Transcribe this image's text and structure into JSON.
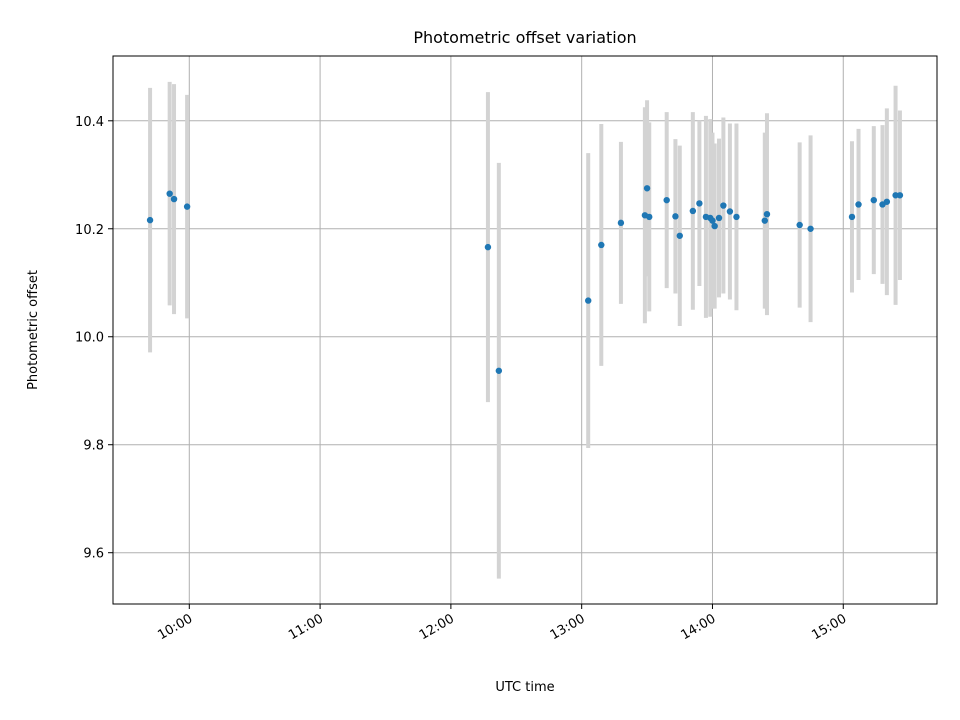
{
  "chart_data": {
    "type": "scatter",
    "title": "Photometric offset variation",
    "xlabel": "UTC time",
    "ylabel": "Photometric offset",
    "xlim": [
      "09:25",
      "15:43"
    ],
    "ylim": [
      9.505,
      10.52
    ],
    "xticks": [
      "10:00",
      "11:00",
      "12:00",
      "13:00",
      "14:00",
      "15:00"
    ],
    "yticks": [
      9.6,
      9.8,
      10.0,
      10.2,
      10.4
    ],
    "grid": true,
    "point_color": "#1f77b4",
    "errorbar_color": "#d3d3d3",
    "points": [
      {
        "x": "09:42",
        "y": 10.216,
        "err": 0.245
      },
      {
        "x": "09:51",
        "y": 10.265,
        "err": 0.207
      },
      {
        "x": "09:53",
        "y": 10.255,
        "err": 0.213
      },
      {
        "x": "09:59",
        "y": 10.241,
        "err": 0.207
      },
      {
        "x": "12:17",
        "y": 10.166,
        "err": 0.287
      },
      {
        "x": "12:22",
        "y": 9.937,
        "err": 0.385
      },
      {
        "x": "13:03",
        "y": 10.067,
        "err": 0.273
      },
      {
        "x": "13:09",
        "y": 10.17,
        "err": 0.224
      },
      {
        "x": "13:18",
        "y": 10.211,
        "err": 0.15
      },
      {
        "x": "13:29",
        "y": 10.225,
        "err": 0.2
      },
      {
        "x": "13:30",
        "y": 10.275,
        "err": 0.163
      },
      {
        "x": "13:31",
        "y": 10.222,
        "err": 0.175
      },
      {
        "x": "13:39",
        "y": 10.253,
        "err": 0.163
      },
      {
        "x": "13:43",
        "y": 10.223,
        "err": 0.143
      },
      {
        "x": "13:45",
        "y": 10.187,
        "err": 0.167
      },
      {
        "x": "13:51",
        "y": 10.233,
        "err": 0.183
      },
      {
        "x": "13:54",
        "y": 10.247,
        "err": 0.153
      },
      {
        "x": "13:57",
        "y": 10.222,
        "err": 0.187
      },
      {
        "x": "13:59",
        "y": 10.22,
        "err": 0.183
      },
      {
        "x": "14:00",
        "y": 10.215,
        "err": 0.163
      },
      {
        "x": "14:01",
        "y": 10.205,
        "err": 0.153
      },
      {
        "x": "14:03",
        "y": 10.22,
        "err": 0.147
      },
      {
        "x": "14:05",
        "y": 10.243,
        "err": 0.163
      },
      {
        "x": "14:08",
        "y": 10.232,
        "err": 0.163
      },
      {
        "x": "14:11",
        "y": 10.222,
        "err": 0.173
      },
      {
        "x": "14:24",
        "y": 10.215,
        "err": 0.163
      },
      {
        "x": "14:25",
        "y": 10.227,
        "err": 0.187
      },
      {
        "x": "14:40",
        "y": 10.207,
        "err": 0.153
      },
      {
        "x": "14:45",
        "y": 10.2,
        "err": 0.173
      },
      {
        "x": "15:04",
        "y": 10.222,
        "err": 0.14
      },
      {
        "x": "15:07",
        "y": 10.245,
        "err": 0.14
      },
      {
        "x": "15:14",
        "y": 10.253,
        "err": 0.137
      },
      {
        "x": "15:18",
        "y": 10.245,
        "err": 0.147
      },
      {
        "x": "15:20",
        "y": 10.25,
        "err": 0.173
      },
      {
        "x": "15:24",
        "y": 10.262,
        "err": 0.203
      },
      {
        "x": "15:26",
        "y": 10.262,
        "err": 0.157
      }
    ]
  }
}
